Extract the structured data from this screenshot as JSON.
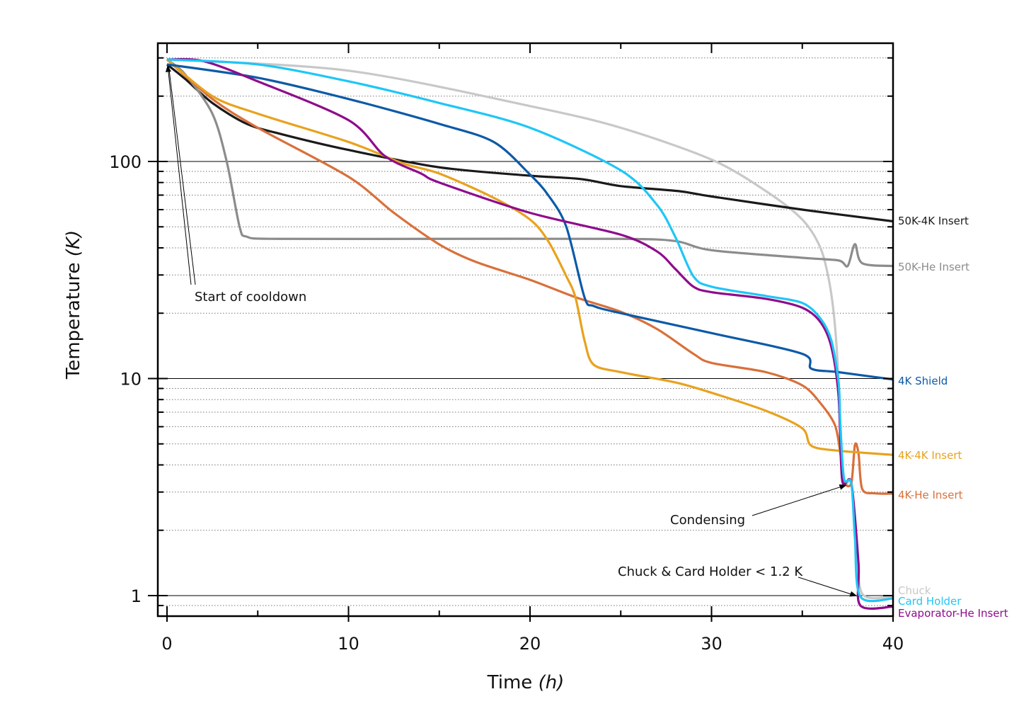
{
  "chart_data": {
    "type": "line",
    "title": "",
    "xlabel": "Time",
    "xlabel_unit": "(h)",
    "ylabel": "Temperature",
    "ylabel_unit": "(K)",
    "xlim": [
      -0.5,
      40
    ],
    "ylim": [
      0.8,
      350
    ],
    "yscale": "log",
    "x_ticks": [
      0,
      10,
      20,
      30,
      40
    ],
    "x_tick_labels": [
      "0",
      "10",
      "20",
      "30",
      "40"
    ],
    "y_ticks": [
      1,
      10,
      100
    ],
    "y_tick_labels": [
      "1",
      "10",
      "100"
    ],
    "grid": true,
    "legend": "labels at right end of each series",
    "series": [
      {
        "name": "50K-4K Insert",
        "color": "#1a1a1a",
        "x": [
          0,
          1,
          2.5,
          4.4,
          6.4,
          10,
          15,
          20,
          22.8,
          25,
          28.2,
          30,
          35,
          40
        ],
        "y": [
          280,
          240,
          186,
          149,
          133,
          113,
          94,
          86,
          83,
          77,
          73,
          69,
          60,
          53
        ]
      },
      {
        "name": "50K-He Insert",
        "color": "#8c8c8c",
        "x": [
          0,
          1,
          2.5,
          3.3,
          4,
          4.4,
          6,
          15,
          25,
          28,
          30,
          35,
          37,
          37.5,
          37.9,
          38.3,
          40
        ],
        "y": [
          295,
          252,
          166,
          99,
          50,
          45,
          44,
          44,
          44,
          43,
          39,
          36,
          35,
          33,
          41.6,
          34,
          33
        ]
      },
      {
        "name": "4K Shield",
        "color": "#0d5aa7",
        "x": [
          0,
          5,
          10,
          15,
          18,
          20,
          21,
          22,
          23,
          23.5,
          25,
          30,
          35,
          35.5,
          37,
          40
        ],
        "y": [
          280,
          243,
          194,
          149,
          123,
          87,
          70,
          50,
          23.7,
          21.6,
          20,
          16.2,
          13,
          11.1,
          10.7,
          9.9
        ]
      },
      {
        "name": "4K-4K Insert",
        "color": "#e8a21e",
        "x": [
          0,
          2.5,
          5,
          10,
          13,
          15,
          18,
          20,
          21,
          22,
          22.5,
          23,
          23.5,
          25,
          28,
          30,
          33,
          35,
          35.5,
          37,
          40
        ],
        "y": [
          295,
          200,
          166,
          123,
          98,
          88,
          68,
          54,
          43,
          29.6,
          23.7,
          15,
          11.6,
          10.7,
          9.6,
          8.6,
          7.1,
          5.9,
          4.9,
          4.65,
          4.45
        ]
      },
      {
        "name": "4K-He Insert",
        "color": "#d9703a",
        "x": [
          0,
          2.5,
          5,
          10,
          12.5,
          15,
          17,
          20,
          22.5,
          25,
          27,
          29,
          30,
          33,
          35,
          36,
          36.8,
          37.1,
          37.3,
          37.7,
          37.9,
          38.1,
          38.3,
          39,
          40
        ],
        "y": [
          295,
          194,
          143,
          85,
          58,
          41.5,
          34.5,
          28.5,
          23.7,
          20.3,
          16.9,
          13,
          11.8,
          10.7,
          9.3,
          7.7,
          6.1,
          4.5,
          3.35,
          3.3,
          4.95,
          4.5,
          3.1,
          2.96,
          2.95
        ]
      },
      {
        "name": "Chuck",
        "color": "#c8c8c8",
        "x": [
          0,
          10,
          20,
          25,
          30,
          33,
          35,
          36,
          36.5,
          36.8,
          37,
          37.2,
          37.7,
          38,
          38.3,
          40
        ],
        "y": [
          295,
          262,
          180,
          143,
          102,
          73,
          54,
          40,
          27.5,
          17.5,
          9.6,
          3.4,
          3.3,
          1.8,
          1.02,
          0.99
        ]
      },
      {
        "name": "Card Holder",
        "color": "#1fc6f6",
        "x": [
          0,
          5,
          10,
          15,
          20,
          25,
          27,
          28,
          29,
          30,
          33,
          35,
          36,
          36.6,
          37,
          37.1,
          37.3,
          37.7,
          37.9,
          38.2,
          40
        ],
        "y": [
          295,
          280,
          234,
          186,
          143,
          91,
          63,
          45,
          29.6,
          26.5,
          24,
          22.3,
          18.9,
          15,
          9.6,
          6.1,
          3.46,
          3.3,
          1.84,
          0.99,
          0.97
        ]
      },
      {
        "name": "Evaporator-He Insert",
        "color": "#8e0c8c",
        "x": [
          0,
          2,
          5,
          10,
          12,
          14,
          15,
          20,
          25,
          27,
          28,
          29,
          30,
          33,
          35,
          36,
          36.6,
          37,
          37.2,
          37.7,
          38.1,
          38.2,
          40
        ],
        "y": [
          295,
          290,
          234,
          155,
          106,
          88,
          80,
          58,
          46,
          38.5,
          32,
          26.5,
          25,
          23.3,
          21.2,
          18.2,
          14,
          8.3,
          3.4,
          3.3,
          1.4,
          0.9,
          0.89
        ]
      }
    ],
    "annotations": [
      {
        "text": "Start of cooldown",
        "arrow_to": [
          0,
          285
        ]
      },
      {
        "text": "Condensing",
        "arrow_to": [
          37.6,
          3.3
        ]
      },
      {
        "text": "Chuck & Card Holder < 1.2 K",
        "arrow_to": [
          38.1,
          0.99
        ]
      }
    ]
  }
}
